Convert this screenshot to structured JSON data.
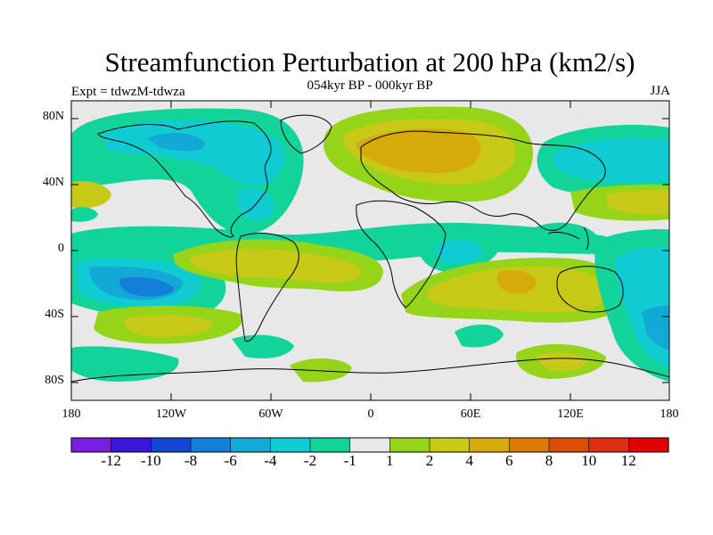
{
  "title": "Streamfunction Perturbation at 200 hPa (km2/s)",
  "subtitle": "054kyr BP - 000kyr BP",
  "experiment": "Expt = tdwzM-tdwza",
  "season": "JJA",
  "lat_labels": [
    "80N",
    "40N",
    "0",
    "40S",
    "80S"
  ],
  "lon_labels": [
    "180",
    "120W",
    "60W",
    "0",
    "60E",
    "120E",
    "180"
  ],
  "colorbar": {
    "labels": [
      "-12",
      "-10",
      "-8",
      "-6",
      "-4",
      "-2",
      "-1",
      "1",
      "2",
      "4",
      "6",
      "8",
      "10",
      "12"
    ],
    "colors": [
      "#7a1fe0",
      "#3a16d8",
      "#1448d4",
      "#137fd8",
      "#12a9d6",
      "#10ccd2",
      "#12d49a",
      "#e8e8e8",
      "#96d41a",
      "#c8c816",
      "#d6aa0a",
      "#dc7a08",
      "#dc4e08",
      "#dc2e10",
      "#e00000"
    ]
  }
}
